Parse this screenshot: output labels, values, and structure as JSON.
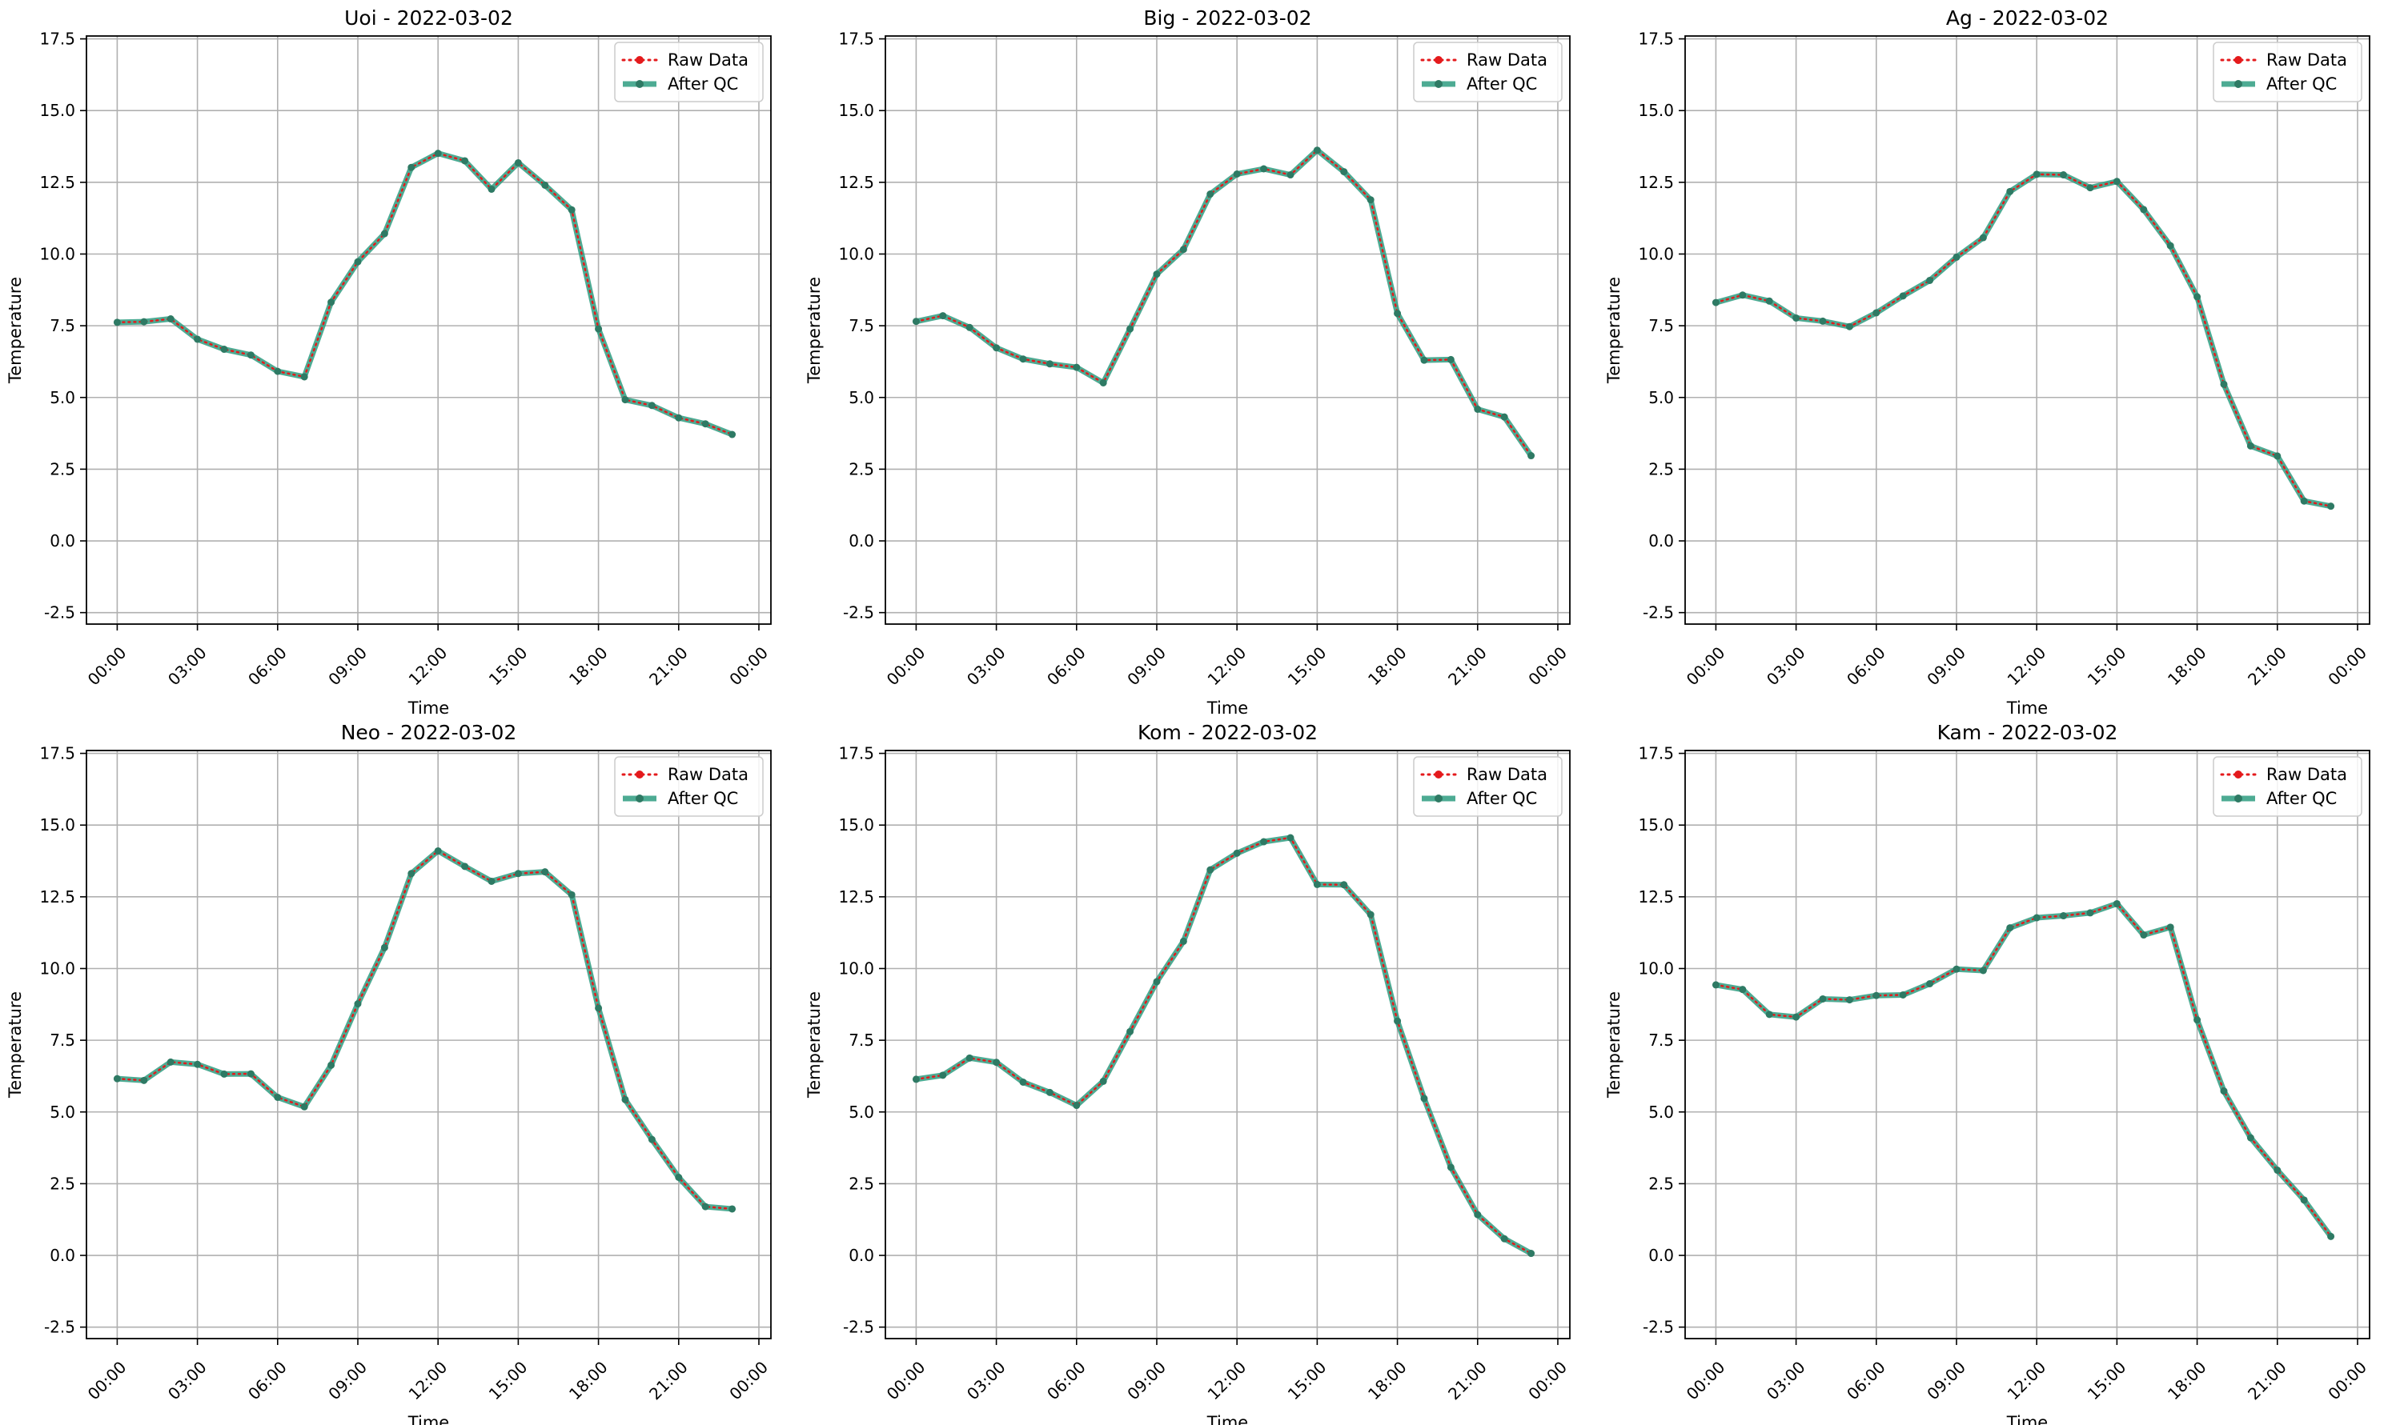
{
  "legend": {
    "raw_label": "Raw Data",
    "qc_label": "After QC",
    "position": "top-right"
  },
  "colors": {
    "raw": "#e41a1c",
    "qc": "#2e9c80",
    "marker": "#2e7a64",
    "grid": "#b0b0b0"
  },
  "chart_data": [
    {
      "type": "line",
      "title": "Uoi - 2022-03-02",
      "xlabel": "Time",
      "ylabel": "Temperature",
      "x_ticks": [
        "00:00",
        "03:00",
        "06:00",
        "09:00",
        "12:00",
        "15:00",
        "18:00",
        "21:00",
        "00:00"
      ],
      "y_ticks": [
        "-2.5",
        "0.0",
        "2.5",
        "5.0",
        "7.5",
        "10.0",
        "12.5",
        "15.0",
        "17.5"
      ],
      "ylim": [
        -2.9,
        17.6
      ],
      "grid": true,
      "x_hours": [
        0,
        1,
        2,
        3,
        4,
        5,
        6,
        7,
        8,
        9,
        10,
        11,
        12,
        13,
        14,
        15,
        16,
        17,
        18,
        19,
        20,
        21,
        22,
        23
      ],
      "series": [
        {
          "name": "Raw Data",
          "values": [
            7.62,
            7.64,
            7.74,
            7.03,
            6.68,
            6.48,
            5.91,
            5.72,
            8.32,
            9.73,
            10.71,
            13.02,
            13.51,
            13.25,
            12.26,
            13.18,
            12.4,
            11.54,
            7.39,
            4.92,
            4.72,
            4.29,
            4.08,
            3.71
          ]
        },
        {
          "name": "After QC",
          "values": [
            7.62,
            7.64,
            7.74,
            7.03,
            6.68,
            6.48,
            5.91,
            5.72,
            8.32,
            9.73,
            10.71,
            13.02,
            13.51,
            13.25,
            12.26,
            13.18,
            12.4,
            11.54,
            7.39,
            4.92,
            4.72,
            4.29,
            4.08,
            3.71
          ]
        }
      ]
    },
    {
      "type": "line",
      "title": "Big - 2022-03-02",
      "xlabel": "Time",
      "ylabel": "Temperature",
      "x_ticks": [
        "00:00",
        "03:00",
        "06:00",
        "09:00",
        "12:00",
        "15:00",
        "18:00",
        "21:00",
        "00:00"
      ],
      "y_ticks": [
        "-2.5",
        "0.0",
        "2.5",
        "5.0",
        "7.5",
        "10.0",
        "12.5",
        "15.0",
        "17.5"
      ],
      "ylim": [
        -2.9,
        17.6
      ],
      "grid": true,
      "x_hours": [
        0,
        1,
        2,
        3,
        4,
        5,
        6,
        7,
        8,
        9,
        10,
        11,
        12,
        13,
        14,
        15,
        16,
        17,
        18,
        19,
        20,
        21,
        22,
        23
      ],
      "series": [
        {
          "name": "Raw Data",
          "values": [
            7.65,
            7.85,
            7.44,
            6.73,
            6.34,
            6.17,
            6.05,
            5.51,
            7.39,
            9.3,
            10.16,
            12.09,
            12.79,
            12.97,
            12.76,
            13.62,
            12.87,
            11.89,
            7.93,
            6.3,
            6.32,
            4.59,
            4.32,
            2.97
          ]
        },
        {
          "name": "After QC",
          "values": [
            7.65,
            7.85,
            7.44,
            6.73,
            6.34,
            6.17,
            6.05,
            5.51,
            7.39,
            9.3,
            10.16,
            12.09,
            12.79,
            12.97,
            12.76,
            13.62,
            12.87,
            11.89,
            7.93,
            6.3,
            6.32,
            4.59,
            4.32,
            2.97
          ]
        }
      ]
    },
    {
      "type": "line",
      "title": "Ag - 2022-03-02",
      "xlabel": "Time",
      "ylabel": "Temperature",
      "x_ticks": [
        "00:00",
        "03:00",
        "06:00",
        "09:00",
        "12:00",
        "15:00",
        "18:00",
        "21:00",
        "00:00"
      ],
      "y_ticks": [
        "-2.5",
        "0.0",
        "2.5",
        "5.0",
        "7.5",
        "10.0",
        "12.5",
        "15.0",
        "17.5"
      ],
      "ylim": [
        -2.9,
        17.6
      ],
      "grid": true,
      "x_hours": [
        0,
        1,
        2,
        3,
        4,
        5,
        6,
        7,
        8,
        9,
        10,
        11,
        12,
        13,
        14,
        15,
        16,
        17,
        18,
        19,
        20,
        21,
        22,
        23
      ],
      "series": [
        {
          "name": "Raw Data",
          "values": [
            8.31,
            8.57,
            8.36,
            7.77,
            7.66,
            7.47,
            7.95,
            8.54,
            9.08,
            9.89,
            10.57,
            12.18,
            12.78,
            12.76,
            12.31,
            12.53,
            11.55,
            10.29,
            8.51,
            5.46,
            3.31,
            2.96,
            1.39,
            1.21
          ]
        },
        {
          "name": "After QC",
          "values": [
            8.31,
            8.57,
            8.36,
            7.77,
            7.66,
            7.47,
            7.95,
            8.54,
            9.08,
            9.89,
            10.57,
            12.18,
            12.78,
            12.76,
            12.31,
            12.53,
            11.55,
            10.29,
            8.51,
            5.46,
            3.31,
            2.96,
            1.39,
            1.21
          ]
        }
      ]
    },
    {
      "type": "line",
      "title": "Neo - 2022-03-02",
      "xlabel": "Time",
      "ylabel": "Temperature",
      "x_ticks": [
        "00:00",
        "03:00",
        "06:00",
        "09:00",
        "12:00",
        "15:00",
        "18:00",
        "21:00",
        "00:00"
      ],
      "y_ticks": [
        "-2.5",
        "0.0",
        "2.5",
        "5.0",
        "7.5",
        "10.0",
        "12.5",
        "15.0",
        "17.5"
      ],
      "ylim": [
        -2.9,
        17.6
      ],
      "grid": true,
      "x_hours": [
        0,
        1,
        2,
        3,
        4,
        5,
        6,
        7,
        8,
        9,
        10,
        11,
        12,
        13,
        14,
        15,
        16,
        17,
        18,
        19,
        20,
        21,
        22,
        23
      ],
      "series": [
        {
          "name": "Raw Data",
          "values": [
            6.16,
            6.1,
            6.74,
            6.66,
            6.32,
            6.33,
            5.51,
            5.18,
            6.63,
            8.77,
            10.73,
            13.31,
            14.1,
            13.56,
            13.04,
            13.31,
            13.37,
            12.57,
            8.62,
            5.43,
            4.04,
            2.72,
            1.7,
            1.62
          ]
        },
        {
          "name": "After QC",
          "values": [
            6.16,
            6.1,
            6.74,
            6.66,
            6.32,
            6.33,
            5.51,
            5.18,
            6.63,
            8.77,
            10.73,
            13.31,
            14.1,
            13.56,
            13.04,
            13.31,
            13.37,
            12.57,
            8.62,
            5.43,
            4.04,
            2.72,
            1.7,
            1.62
          ]
        }
      ]
    },
    {
      "type": "line",
      "title": "Kom - 2022-03-02",
      "xlabel": "Time",
      "ylabel": "Temperature",
      "x_ticks": [
        "00:00",
        "03:00",
        "06:00",
        "09:00",
        "12:00",
        "15:00",
        "18:00",
        "21:00",
        "00:00"
      ],
      "y_ticks": [
        "-2.5",
        "0.0",
        "2.5",
        "5.0",
        "7.5",
        "10.0",
        "12.5",
        "15.0",
        "17.5"
      ],
      "ylim": [
        -2.9,
        17.6
      ],
      "grid": true,
      "x_hours": [
        0,
        1,
        2,
        3,
        4,
        5,
        6,
        7,
        8,
        9,
        10,
        11,
        12,
        13,
        14,
        15,
        16,
        17,
        18,
        19,
        20,
        21,
        22,
        23
      ],
      "series": [
        {
          "name": "Raw Data",
          "values": [
            6.14,
            6.28,
            6.88,
            6.73,
            6.04,
            5.68,
            5.23,
            6.07,
            7.8,
            9.54,
            10.95,
            13.44,
            14.02,
            14.42,
            14.56,
            12.93,
            12.92,
            11.88,
            8.17,
            5.47,
            3.07,
            1.42,
            0.58,
            0.07
          ]
        },
        {
          "name": "After QC",
          "values": [
            6.14,
            6.28,
            6.88,
            6.73,
            6.04,
            5.68,
            5.23,
            6.07,
            7.8,
            9.54,
            10.95,
            13.44,
            14.02,
            14.42,
            14.56,
            12.93,
            12.92,
            11.88,
            8.17,
            5.47,
            3.07,
            1.42,
            0.58,
            0.07
          ]
        }
      ]
    },
    {
      "type": "line",
      "title": "Kam - 2022-03-02",
      "xlabel": "Time",
      "ylabel": "Temperature",
      "x_ticks": [
        "00:00",
        "03:00",
        "06:00",
        "09:00",
        "12:00",
        "15:00",
        "18:00",
        "21:00",
        "00:00"
      ],
      "y_ticks": [
        "-2.5",
        "0.0",
        "2.5",
        "5.0",
        "7.5",
        "10.0",
        "12.5",
        "15.0",
        "17.5"
      ],
      "ylim": [
        -2.9,
        17.6
      ],
      "grid": true,
      "x_hours": [
        0,
        1,
        2,
        3,
        4,
        5,
        6,
        7,
        8,
        9,
        10,
        11,
        12,
        13,
        14,
        15,
        16,
        17,
        18,
        19,
        20,
        21,
        22,
        23
      ],
      "series": [
        {
          "name": "Raw Data",
          "values": [
            9.43,
            9.27,
            8.4,
            8.31,
            8.94,
            8.91,
            9.06,
            9.08,
            9.47,
            9.98,
            9.93,
            11.42,
            11.77,
            11.84,
            11.94,
            12.26,
            11.17,
            11.44,
            8.21,
            5.73,
            4.1,
            2.97,
            1.93,
            0.66
          ]
        },
        {
          "name": "After QC",
          "values": [
            9.43,
            9.27,
            8.4,
            8.31,
            8.94,
            8.91,
            9.06,
            9.08,
            9.47,
            9.98,
            9.93,
            11.42,
            11.77,
            11.84,
            11.94,
            12.26,
            11.17,
            11.44,
            8.21,
            5.73,
            4.1,
            2.97,
            1.93,
            0.66
          ]
        }
      ]
    }
  ]
}
